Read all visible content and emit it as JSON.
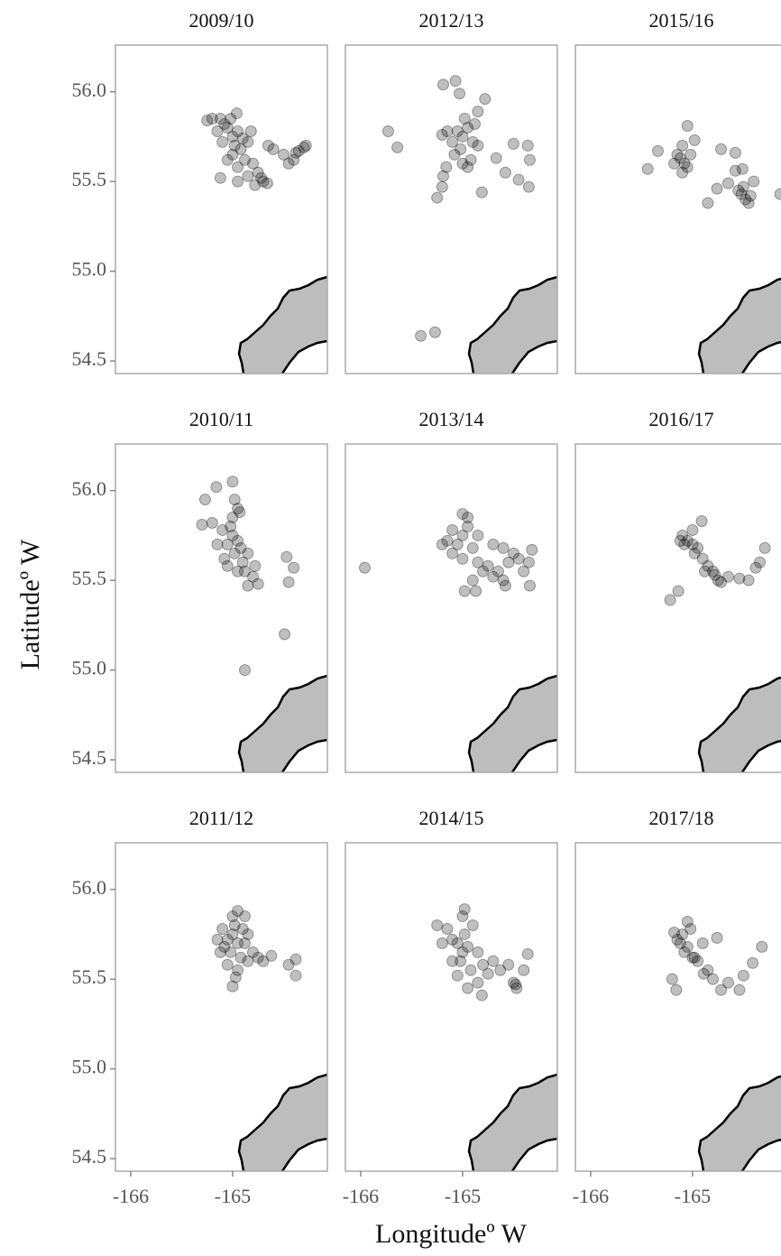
{
  "ylabel": "Latitudeº W",
  "xlabel": "Longitudeº W",
  "axes": {
    "xlim": [
      -166.15,
      -164.07
    ],
    "ylim": [
      54.43,
      56.26
    ],
    "xticks": [
      -166,
      -165
    ],
    "yticks": [
      {
        "value": 54.5,
        "label": "54.5"
      },
      {
        "value": 55,
        "label": "55.0"
      },
      {
        "value": 55.5,
        "label": "55.5"
      },
      {
        "value": 56,
        "label": "56.0"
      }
    ]
  },
  "point_color": "#000000",
  "chart_data": [
    {
      "type": "scatter",
      "title": "2009/10",
      "x": [
        -165.05,
        -165.0,
        -164.95,
        -165.1,
        -164.98,
        -165.02,
        -164.9,
        -165.08,
        -164.92,
        -165.0,
        -164.85,
        -165.15,
        -165.12,
        -164.96,
        -164.88,
        -164.8,
        -164.75,
        -164.7,
        -164.78,
        -164.95,
        -165.05,
        -165.2,
        -165.25,
        -164.82,
        -164.65,
        -164.6,
        -164.5,
        -164.4,
        -164.35,
        -164.3,
        -164.28,
        -164.38,
        -164.45,
        -165.12,
        -164.66,
        -164.85,
        -164.95,
        -164.72
      ],
      "y": [
        55.8,
        55.75,
        55.78,
        55.72,
        55.7,
        55.85,
        55.74,
        55.82,
        55.68,
        55.65,
        55.72,
        55.78,
        55.85,
        55.88,
        55.62,
        55.6,
        55.55,
        55.5,
        55.48,
        55.58,
        55.62,
        55.85,
        55.84,
        55.78,
        55.7,
        55.68,
        55.65,
        55.62,
        55.67,
        55.69,
        55.7,
        55.66,
        55.6,
        55.52,
        55.49,
        55.53,
        55.5,
        55.52
      ]
    },
    {
      "type": "scatter",
      "title": "2010/11",
      "x": [
        -165.0,
        -165.05,
        -164.95,
        -165.02,
        -164.98,
        -165.1,
        -164.92,
        -165.08,
        -164.9,
        -164.85,
        -165.0,
        -164.95,
        -164.98,
        -165.0,
        -165.16,
        -165.27,
        -165.3,
        -165.2,
        -165.15,
        -164.88,
        -164.8,
        -164.85,
        -164.75,
        -164.78,
        -164.95,
        -165.05,
        -164.47,
        -164.45,
        -164.4,
        -164.49,
        -164.88,
        -164.93
      ],
      "y": [
        55.75,
        55.7,
        55.72,
        55.8,
        55.65,
        55.78,
        55.68,
        55.62,
        55.6,
        55.65,
        55.85,
        55.9,
        55.95,
        56.05,
        56.02,
        55.95,
        55.81,
        55.82,
        55.7,
        55.55,
        55.52,
        55.47,
        55.48,
        55.58,
        55.55,
        55.58,
        55.63,
        55.49,
        55.57,
        55.2,
        55.0,
        55.88
      ]
    },
    {
      "type": "scatter",
      "title": "2011/12",
      "x": [
        -165.0,
        -164.95,
        -165.05,
        -164.98,
        -164.9,
        -165.02,
        -164.92,
        -165.08,
        -164.88,
        -164.85,
        -165.0,
        -164.95,
        -164.88,
        -165.1,
        -165.12,
        -165.05,
        -164.95,
        -164.85,
        -164.8,
        -164.75,
        -164.62,
        -164.45,
        -164.38,
        -164.38,
        -165.0,
        -164.97,
        -165.15,
        -164.7
      ],
      "y": [
        55.75,
        55.7,
        55.72,
        55.8,
        55.78,
        55.65,
        55.62,
        55.68,
        55.7,
        55.75,
        55.85,
        55.88,
        55.85,
        55.78,
        55.65,
        55.58,
        55.55,
        55.6,
        55.65,
        55.62,
        55.63,
        55.58,
        55.52,
        55.61,
        55.46,
        55.51,
        55.72,
        55.6
      ]
    },
    {
      "type": "scatter",
      "title": "2012/13",
      "x": [
        -165.05,
        -165.0,
        -165.1,
        -164.95,
        -165.02,
        -165.15,
        -164.98,
        -164.9,
        -165.08,
        -164.92,
        -165.2,
        -164.85,
        -165.0,
        -164.95,
        -164.88,
        -165.73,
        -165.64,
        -165.19,
        -165.07,
        -165.03,
        -164.78,
        -164.85,
        -164.5,
        -164.36,
        -164.34,
        -164.35,
        -164.45,
        -164.58,
        -164.81,
        -165.16,
        -165.19,
        -165.2,
        -165.25,
        -165.41,
        -165.27,
        -164.67
      ],
      "y": [
        55.78,
        55.75,
        55.72,
        55.8,
        55.68,
        55.78,
        55.85,
        55.72,
        55.65,
        55.62,
        55.76,
        55.7,
        55.6,
        55.58,
        55.82,
        55.78,
        55.69,
        56.04,
        56.06,
        55.99,
        55.96,
        55.89,
        55.71,
        55.7,
        55.62,
        55.47,
        55.51,
        55.55,
        55.44,
        55.58,
        55.53,
        55.47,
        55.41,
        54.64,
        54.66,
        55.63
      ]
    },
    {
      "type": "scatter",
      "title": "2013/14",
      "x": [
        -165.0,
        -165.05,
        -164.95,
        -165.1,
        -165.0,
        -164.9,
        -164.85,
        -164.95,
        -165.0,
        -165.1,
        -165.15,
        -164.8,
        -164.75,
        -164.7,
        -164.65,
        -164.6,
        -164.55,
        -164.5,
        -164.45,
        -164.4,
        -164.35,
        -164.32,
        -164.34,
        -164.58,
        -164.87,
        -164.98,
        -164.9,
        -165.96,
        -164.7,
        -164.6,
        -165.2,
        -164.85
      ],
      "y": [
        55.75,
        55.7,
        55.8,
        55.65,
        55.62,
        55.68,
        55.6,
        55.85,
        55.87,
        55.78,
        55.72,
        55.55,
        55.58,
        55.52,
        55.55,
        55.5,
        55.6,
        55.65,
        55.62,
        55.55,
        55.6,
        55.67,
        55.47,
        55.47,
        55.44,
        55.44,
        55.5,
        55.57,
        55.7,
        55.68,
        55.7,
        55.75
      ]
    },
    {
      "type": "scatter",
      "title": "2014/15",
      "x": [
        -165.05,
        -165.0,
        -165.1,
        -164.95,
        -165.02,
        -164.98,
        -165.1,
        -164.92,
        -165.15,
        -165.25,
        -165.0,
        -164.98,
        -164.9,
        -164.85,
        -164.8,
        -164.75,
        -164.85,
        -164.81,
        -164.95,
        -165.05,
        -164.7,
        -164.63,
        -164.48,
        -164.47,
        -164.5,
        -164.36,
        -164.4,
        -164.55,
        -165.2
      ],
      "y": [
        55.7,
        55.65,
        55.72,
        55.68,
        55.6,
        55.75,
        55.6,
        55.55,
        55.78,
        55.8,
        55.85,
        55.89,
        55.8,
        55.65,
        55.58,
        55.53,
        55.48,
        55.41,
        55.45,
        55.52,
        55.6,
        55.55,
        55.47,
        55.45,
        55.48,
        55.64,
        55.55,
        55.58,
        55.7
      ]
    },
    {
      "type": "scatter",
      "title": "2015/16",
      "x": [
        -165.12,
        -165.08,
        -165.15,
        -165.1,
        -165.05,
        -165.18,
        -165.02,
        -165.1,
        -164.52,
        -164.48,
        -164.45,
        -164.55,
        -164.5,
        -164.43,
        -165.44,
        -165.34,
        -165.05,
        -164.98,
        -164.72,
        -164.58,
        -164.58,
        -164.51,
        -164.65,
        -164.76,
        -164.85,
        -164.14,
        -164.4
      ],
      "y": [
        55.63,
        55.6,
        55.65,
        55.7,
        55.58,
        55.6,
        55.65,
        55.55,
        55.43,
        55.4,
        55.38,
        55.45,
        55.47,
        55.42,
        55.57,
        55.67,
        55.81,
        55.73,
        55.68,
        55.66,
        55.56,
        55.57,
        55.49,
        55.46,
        55.38,
        55.43,
        55.5
      ]
    },
    {
      "type": "scatter",
      "title": "2016/17",
      "x": [
        -165.05,
        -165.0,
        -165.1,
        -164.95,
        -164.98,
        -165.08,
        -164.9,
        -164.85,
        -164.8,
        -164.75,
        -164.72,
        -164.78,
        -164.88,
        -165.12,
        -165.0,
        -164.91,
        -165.22,
        -165.14,
        -164.54,
        -164.38,
        -164.29,
        -164.34,
        -164.45,
        -164.65
      ],
      "y": [
        55.72,
        55.7,
        55.75,
        55.68,
        55.65,
        55.7,
        55.62,
        55.58,
        55.55,
        55.5,
        55.49,
        55.53,
        55.55,
        55.72,
        55.78,
        55.83,
        55.39,
        55.44,
        55.51,
        55.57,
        55.68,
        55.6,
        55.5,
        55.52
      ]
    },
    {
      "type": "scatter",
      "title": "2017/18",
      "x": [
        -165.12,
        -165.1,
        -165.15,
        -165.05,
        -165.08,
        -165.0,
        -165.18,
        -165.02,
        -164.95,
        -164.89,
        -164.8,
        -164.85,
        -164.72,
        -164.54,
        -164.41,
        -164.32,
        -164.5,
        -164.76,
        -165.05,
        -165.2,
        -165.16,
        -164.98,
        -164.65,
        -164.9
      ],
      "y": [
        55.7,
        55.75,
        55.72,
        55.68,
        55.65,
        55.62,
        55.76,
        55.78,
        55.6,
        55.53,
        55.5,
        55.55,
        55.44,
        55.44,
        55.59,
        55.68,
        55.52,
        55.73,
        55.82,
        55.5,
        55.44,
        55.62,
        55.48,
        55.7
      ]
    }
  ]
}
